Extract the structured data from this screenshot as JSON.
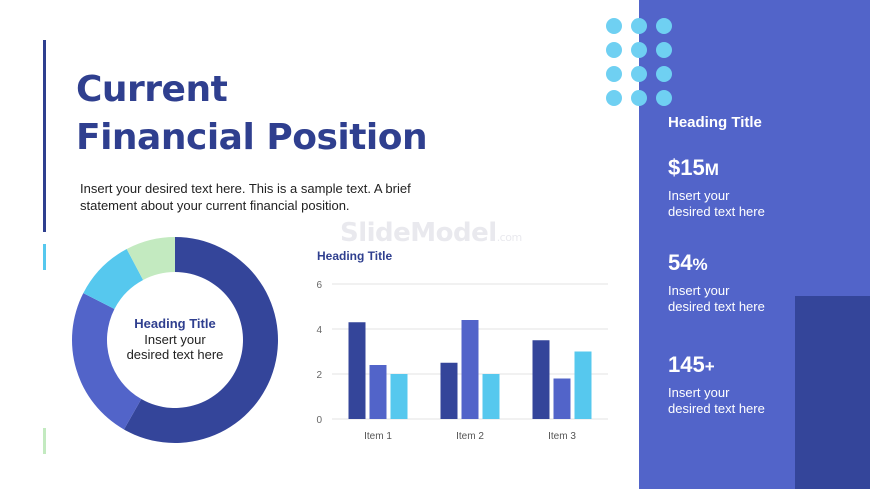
{
  "title_line1": "Current",
  "title_line2": "Financial Position",
  "intro_text": "Insert your desired text here. This is a sample text. A brief statement about your current financial position.",
  "watermark_main": "SlideModel",
  "watermark_suffix": ".com",
  "donut_center": {
    "heading": "Heading Title",
    "line1": "Insert your",
    "line2": "desired text here"
  },
  "bar_heading": "Heading Title",
  "right_panel": {
    "heading": "Heading Title",
    "stats": [
      {
        "value": "$15",
        "unit": "M",
        "line1": "Insert your",
        "line2": "desired text here"
      },
      {
        "value": "54",
        "unit": "%",
        "line1": "Insert your",
        "line2": "desired text here"
      },
      {
        "value": "145",
        "unit": "+",
        "line1": "Insert your",
        "line2": "desired text here"
      }
    ]
  },
  "colors": {
    "navy": "#34459a",
    "blue": "#5264c9",
    "cyan": "#56c8ee",
    "green": "#c3eac0",
    "title": "#2f3f8f",
    "dot": "#6fd0f2"
  },
  "chart_data": [
    {
      "type": "pie",
      "donut": true,
      "values": [
        60,
        25,
        10,
        8
      ],
      "colors": [
        "#34459a",
        "#5264c9",
        "#56c8ee",
        "#c3eac0"
      ]
    },
    {
      "type": "bar",
      "categories": [
        "Item 1",
        "Item 2",
        "Item 3"
      ],
      "series": [
        {
          "values": [
            4.3,
            2.5,
            3.5
          ],
          "color": "#34459a"
        },
        {
          "values": [
            2.4,
            4.4,
            1.8
          ],
          "color": "#5264c9"
        },
        {
          "values": [
            2.0,
            2.0,
            3.0
          ],
          "color": "#56c8ee"
        }
      ],
      "ylim": [
        0,
        6
      ],
      "yticks": [
        0,
        2,
        4,
        6
      ],
      "grid": true
    }
  ]
}
